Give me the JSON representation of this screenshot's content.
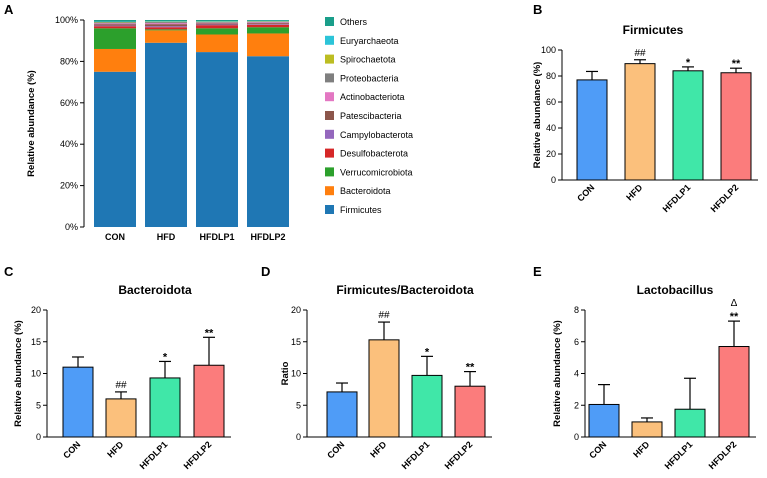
{
  "colors": {
    "CON": "#4f9cf7",
    "HFD": "#fbc07c",
    "HFDLP1": "#40e7a8",
    "HFDLP2": "#fb7c7c",
    "phyla": {
      "Others": "#1a9e8a",
      "Euryarchaeota": "#2cc4d8",
      "Spirochaetota": "#bcbd22",
      "Proteobacteria": "#7f7f7f",
      "Actinobacteriota": "#e377c2",
      "Patescibacteria": "#8c564b",
      "Campylobacterota": "#9467bd",
      "Desulfobacterota": "#d62728",
      "Verrucomicrobiota": "#2ca02c",
      "Bacteroidota": "#ff7f0e",
      "Firmicutes": "#1f77b4"
    }
  },
  "chart_data": [
    {
      "panel": "A",
      "type": "bar",
      "stacked": true,
      "title": "",
      "ylabel": "Relative abundance (%)",
      "xlabel": "",
      "ylim": [
        0,
        100
      ],
      "yticks": [
        "0%",
        "20%",
        "40%",
        "60%",
        "80%",
        "100%"
      ],
      "categories": [
        "CON",
        "HFD",
        "HFDLP1",
        "HFDLP2"
      ],
      "legend_order": [
        "Others",
        "Euryarchaeota",
        "Spirochaetota",
        "Proteobacteria",
        "Actinobacteriota",
        "Patescibacteria",
        "Campylobacterota",
        "Desulfobacterota",
        "Verrucomicrobiota",
        "Bacteroidota",
        "Firmicutes"
      ],
      "series": [
        {
          "name": "Firmicutes",
          "values": [
            75,
            89,
            84.5,
            82.5
          ]
        },
        {
          "name": "Bacteroidota",
          "values": [
            11,
            6,
            8.5,
            11
          ]
        },
        {
          "name": "Verrucomicrobiota",
          "values": [
            10,
            0.5,
            3,
            3
          ]
        },
        {
          "name": "Desulfobacterota",
          "values": [
            1,
            1,
            1.5,
            1.2
          ]
        },
        {
          "name": "Campylobacterota",
          "values": [
            0.3,
            0.5,
            0.3,
            0.3
          ]
        },
        {
          "name": "Patescibacteria",
          "values": [
            0.7,
            1,
            0.6,
            0.5
          ]
        },
        {
          "name": "Actinobacteriota",
          "values": [
            0.4,
            0.5,
            0.3,
            0.4
          ]
        },
        {
          "name": "Proteobacteria",
          "values": [
            0.4,
            0.5,
            0.3,
            0.3
          ]
        },
        {
          "name": "Spirochaetota",
          "values": [
            0.2,
            0.2,
            0.2,
            0.2
          ]
        },
        {
          "name": "Euryarchaeota",
          "values": [
            0.2,
            0.2,
            0.2,
            0.2
          ]
        },
        {
          "name": "Others",
          "values": [
            0.8,
            0.6,
            0.6,
            0.4
          ]
        }
      ]
    },
    {
      "panel": "B",
      "type": "bar",
      "title": "Firmicutes",
      "ylabel": "Relative abundance (%)",
      "xlabel": "",
      "ylim": [
        0,
        100
      ],
      "yticks": [
        "0",
        "20",
        "40",
        "60",
        "80",
        "100"
      ],
      "categories": [
        "CON",
        "HFD",
        "HFDLP1",
        "HFDLP2"
      ],
      "values": [
        77,
        89.5,
        84,
        82.5
      ],
      "errors": [
        6.5,
        3,
        3,
        3.5
      ],
      "annotations": [
        "",
        "##",
        "*",
        "**"
      ]
    },
    {
      "panel": "C",
      "type": "bar",
      "title": "Bacteroidota",
      "ylabel": "Relative abundance (%)",
      "xlabel": "",
      "ylim": [
        0,
        20
      ],
      "yticks": [
        "0",
        "5",
        "10",
        "15",
        "20"
      ],
      "categories": [
        "CON",
        "HFD",
        "HFDLP1",
        "HFDLP2"
      ],
      "values": [
        11,
        6,
        9.3,
        11.3
      ],
      "errors": [
        1.6,
        1.1,
        2.6,
        4.4
      ],
      "annotations": [
        "",
        "##",
        "*",
        "**"
      ]
    },
    {
      "panel": "D",
      "type": "bar",
      "title": "Firmicutes/Bacteroidota",
      "ylabel": "Ratio",
      "xlabel": "",
      "ylim": [
        0,
        20
      ],
      "yticks": [
        "0",
        "5",
        "10",
        "15",
        "20"
      ],
      "categories": [
        "CON",
        "HFD",
        "HFDLP1",
        "HFDLP2"
      ],
      "values": [
        7.1,
        15.3,
        9.7,
        8
      ],
      "errors": [
        1.4,
        2.8,
        3,
        2.3
      ],
      "annotations": [
        "",
        "##",
        "*",
        "**"
      ]
    },
    {
      "panel": "E",
      "type": "bar",
      "title": "Lactobacillus",
      "ylabel": "Relative abundance (%)",
      "xlabel": "",
      "ylim": [
        0,
        8
      ],
      "yticks": [
        "0",
        "2",
        "4",
        "6",
        "8"
      ],
      "categories": [
        "CON",
        "HFD",
        "HFDLP1",
        "HFDLP2"
      ],
      "values": [
        2.05,
        0.95,
        1.75,
        5.7
      ],
      "errors": [
        1.25,
        0.25,
        1.95,
        1.6
      ],
      "annotations": [
        "",
        "",
        "",
        "**"
      ],
      "annotations_top": [
        "",
        "",
        "",
        "Δ"
      ]
    }
  ]
}
